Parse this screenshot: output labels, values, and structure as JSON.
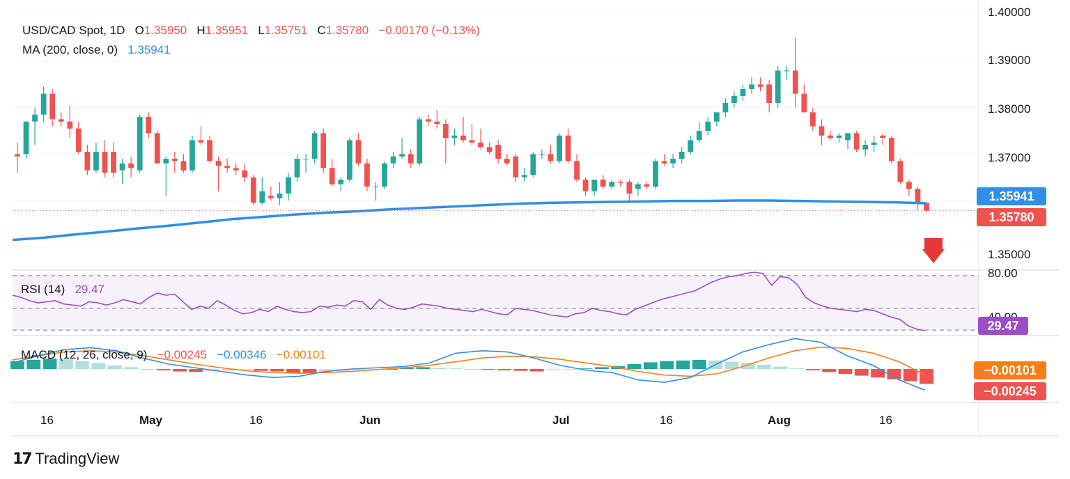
{
  "legend": {
    "symbol": "USD/CAD Spot, 1D",
    "o_label": "O",
    "o_value": "1.35950",
    "h_label": "H",
    "h_value": "1.35951",
    "l_label": "L",
    "l_value": "1.35751",
    "c_label": "C",
    "c_value": "1.35780",
    "change": "−0.00170 (−0.13%)",
    "ma_label": "MA (200, close, 0)",
    "ma_value": "1.35941",
    "rsi_label": "RSI (14)",
    "rsi_value": "29.47",
    "macd_label": "MACD (12, 26, close, 9)",
    "macd_hist": "−0.00245",
    "macd_line": "−0.00346",
    "macd_signal": "−0.00101"
  },
  "price_axis": [
    "1.40000",
    "1.39000",
    "1.38000",
    "1.37000",
    "1.35000"
  ],
  "rsi_axis": [
    "80.00",
    "40.00"
  ],
  "badges": {
    "ma": "1.35941",
    "close": "1.35780",
    "rsi": "29.47",
    "macd_signal": "−0.00101",
    "macd_hist": "−0.00245"
  },
  "x_axis": [
    "16",
    "May",
    "16",
    "Jun",
    "Jul",
    "16",
    "Aug",
    "16"
  ],
  "brand": "TradingView",
  "colors": {
    "up": "#26a69a",
    "down": "#ef5350",
    "ma": "#2f8fe6",
    "rsi": "#9c4fc4",
    "macd": "#2f8fe6",
    "signal": "#f57f17",
    "arrow": "#e53935"
  },
  "chart_data": {
    "type": "candlestick",
    "title": "USD/CAD Spot, 1D",
    "ylim": [
      1.345,
      1.4005
    ],
    "candles": [
      {
        "o": 1.37,
        "h": 1.3725,
        "l": 1.366,
        "c": 1.3695
      },
      {
        "o": 1.37,
        "h": 1.377,
        "l": 1.369,
        "c": 1.377
      },
      {
        "o": 1.377,
        "h": 1.38,
        "l": 1.372,
        "c": 1.3785
      },
      {
        "o": 1.3785,
        "h": 1.3845,
        "l": 1.377,
        "c": 1.383
      },
      {
        "o": 1.383,
        "h": 1.384,
        "l": 1.376,
        "c": 1.3775
      },
      {
        "o": 1.3775,
        "h": 1.379,
        "l": 1.376,
        "c": 1.377
      },
      {
        "o": 1.377,
        "h": 1.3805,
        "l": 1.3735,
        "c": 1.3755
      },
      {
        "o": 1.3755,
        "h": 1.377,
        "l": 1.37,
        "c": 1.3705
      },
      {
        "o": 1.3705,
        "h": 1.372,
        "l": 1.3655,
        "c": 1.3665
      },
      {
        "o": 1.3665,
        "h": 1.3725,
        "l": 1.366,
        "c": 1.3705
      },
      {
        "o": 1.3705,
        "h": 1.373,
        "l": 1.365,
        "c": 1.366
      },
      {
        "o": 1.3705,
        "h": 1.3725,
        "l": 1.365,
        "c": 1.366
      },
      {
        "o": 1.3665,
        "h": 1.369,
        "l": 1.3635,
        "c": 1.368
      },
      {
        "o": 1.368,
        "h": 1.3695,
        "l": 1.365,
        "c": 1.367
      },
      {
        "o": 1.3665,
        "h": 1.3785,
        "l": 1.366,
        "c": 1.378
      },
      {
        "o": 1.378,
        "h": 1.379,
        "l": 1.3735,
        "c": 1.3745
      },
      {
        "o": 1.3745,
        "h": 1.375,
        "l": 1.368,
        "c": 1.368
      },
      {
        "o": 1.368,
        "h": 1.3695,
        "l": 1.361,
        "c": 1.369
      },
      {
        "o": 1.369,
        "h": 1.3705,
        "l": 1.366,
        "c": 1.3685
      },
      {
        "o": 1.3685,
        "h": 1.37,
        "l": 1.366,
        "c": 1.3665
      },
      {
        "o": 1.3665,
        "h": 1.374,
        "l": 1.366,
        "c": 1.373
      },
      {
        "o": 1.373,
        "h": 1.376,
        "l": 1.372,
        "c": 1.3725
      },
      {
        "o": 1.373,
        "h": 1.374,
        "l": 1.368,
        "c": 1.3685
      },
      {
        "o": 1.3685,
        "h": 1.3695,
        "l": 1.362,
        "c": 1.3675
      },
      {
        "o": 1.3675,
        "h": 1.369,
        "l": 1.366,
        "c": 1.367
      },
      {
        "o": 1.367,
        "h": 1.368,
        "l": 1.3655,
        "c": 1.3665
      },
      {
        "o": 1.3665,
        "h": 1.368,
        "l": 1.364,
        "c": 1.365
      },
      {
        "o": 1.365,
        "h": 1.3655,
        "l": 1.359,
        "c": 1.3595
      },
      {
        "o": 1.3595,
        "h": 1.365,
        "l": 1.359,
        "c": 1.362
      },
      {
        "o": 1.361,
        "h": 1.363,
        "l": 1.36,
        "c": 1.3605
      },
      {
        "o": 1.3605,
        "h": 1.364,
        "l": 1.359,
        "c": 1.3615
      },
      {
        "o": 1.3615,
        "h": 1.366,
        "l": 1.36,
        "c": 1.365
      },
      {
        "o": 1.365,
        "h": 1.37,
        "l": 1.364,
        "c": 1.369
      },
      {
        "o": 1.369,
        "h": 1.37,
        "l": 1.366,
        "c": 1.369
      },
      {
        "o": 1.369,
        "h": 1.375,
        "l": 1.368,
        "c": 1.3745
      },
      {
        "o": 1.3745,
        "h": 1.3755,
        "l": 1.366,
        "c": 1.367
      },
      {
        "o": 1.367,
        "h": 1.369,
        "l": 1.363,
        "c": 1.3635
      },
      {
        "o": 1.3635,
        "h": 1.365,
        "l": 1.362,
        "c": 1.3645
      },
      {
        "o": 1.3645,
        "h": 1.3735,
        "l": 1.364,
        "c": 1.373
      },
      {
        "o": 1.373,
        "h": 1.3745,
        "l": 1.3675,
        "c": 1.368
      },
      {
        "o": 1.368,
        "h": 1.369,
        "l": 1.362,
        "c": 1.363
      },
      {
        "o": 1.363,
        "h": 1.364,
        "l": 1.36,
        "c": 1.363
      },
      {
        "o": 1.363,
        "h": 1.3685,
        "l": 1.3625,
        "c": 1.368
      },
      {
        "o": 1.368,
        "h": 1.3705,
        "l": 1.367,
        "c": 1.3695
      },
      {
        "o": 1.3695,
        "h": 1.3735,
        "l": 1.369,
        "c": 1.37
      },
      {
        "o": 1.37,
        "h": 1.371,
        "l": 1.367,
        "c": 1.368
      },
      {
        "o": 1.368,
        "h": 1.378,
        "l": 1.3675,
        "c": 1.3775
      },
      {
        "o": 1.3775,
        "h": 1.3785,
        "l": 1.376,
        "c": 1.377
      },
      {
        "o": 1.377,
        "h": 1.3795,
        "l": 1.3755,
        "c": 1.3765
      },
      {
        "o": 1.3765,
        "h": 1.3775,
        "l": 1.368,
        "c": 1.3735
      },
      {
        "o": 1.3735,
        "h": 1.3755,
        "l": 1.372,
        "c": 1.374
      },
      {
        "o": 1.374,
        "h": 1.378,
        "l": 1.3725,
        "c": 1.373
      },
      {
        "o": 1.373,
        "h": 1.3765,
        "l": 1.372,
        "c": 1.3725
      },
      {
        "o": 1.3725,
        "h": 1.3755,
        "l": 1.371,
        "c": 1.3715
      },
      {
        "o": 1.3715,
        "h": 1.3725,
        "l": 1.37,
        "c": 1.3705
      },
      {
        "o": 1.372,
        "h": 1.373,
        "l": 1.368,
        "c": 1.369
      },
      {
        "o": 1.369,
        "h": 1.37,
        "l": 1.3675,
        "c": 1.368
      },
      {
        "o": 1.3695,
        "h": 1.37,
        "l": 1.364,
        "c": 1.365
      },
      {
        "o": 1.365,
        "h": 1.367,
        "l": 1.364,
        "c": 1.3655
      },
      {
        "o": 1.3655,
        "h": 1.3705,
        "l": 1.365,
        "c": 1.37
      },
      {
        "o": 1.37,
        "h": 1.371,
        "l": 1.369,
        "c": 1.37
      },
      {
        "o": 1.37,
        "h": 1.372,
        "l": 1.368,
        "c": 1.3685
      },
      {
        "o": 1.3685,
        "h": 1.3745,
        "l": 1.368,
        "c": 1.374
      },
      {
        "o": 1.374,
        "h": 1.3755,
        "l": 1.368,
        "c": 1.3685
      },
      {
        "o": 1.3685,
        "h": 1.37,
        "l": 1.364,
        "c": 1.3645
      },
      {
        "o": 1.3645,
        "h": 1.365,
        "l": 1.361,
        "c": 1.362
      },
      {
        "o": 1.362,
        "h": 1.3645,
        "l": 1.361,
        "c": 1.3645
      },
      {
        "o": 1.3645,
        "h": 1.3655,
        "l": 1.3625,
        "c": 1.363
      },
      {
        "o": 1.363,
        "h": 1.3645,
        "l": 1.3625,
        "c": 1.364
      },
      {
        "o": 1.364,
        "h": 1.3645,
        "l": 1.363,
        "c": 1.3638
      },
      {
        "o": 1.364,
        "h": 1.3645,
        "l": 1.36,
        "c": 1.3615
      },
      {
        "o": 1.3625,
        "h": 1.364,
        "l": 1.361,
        "c": 1.3635
      },
      {
        "o": 1.3635,
        "h": 1.364,
        "l": 1.3625,
        "c": 1.363
      },
      {
        "o": 1.363,
        "h": 1.369,
        "l": 1.3625,
        "c": 1.3685
      },
      {
        "o": 1.3685,
        "h": 1.37,
        "l": 1.3675,
        "c": 1.368
      },
      {
        "o": 1.368,
        "h": 1.37,
        "l": 1.367,
        "c": 1.369
      },
      {
        "o": 1.369,
        "h": 1.3715,
        "l": 1.368,
        "c": 1.3705
      },
      {
        "o": 1.3705,
        "h": 1.374,
        "l": 1.37,
        "c": 1.373
      },
      {
        "o": 1.373,
        "h": 1.377,
        "l": 1.3725,
        "c": 1.375
      },
      {
        "o": 1.375,
        "h": 1.378,
        "l": 1.374,
        "c": 1.377
      },
      {
        "o": 1.377,
        "h": 1.379,
        "l": 1.376,
        "c": 1.379
      },
      {
        "o": 1.379,
        "h": 1.382,
        "l": 1.378,
        "c": 1.381
      },
      {
        "o": 1.381,
        "h": 1.3835,
        "l": 1.38,
        "c": 1.3825
      },
      {
        "o": 1.3825,
        "h": 1.385,
        "l": 1.3815,
        "c": 1.384
      },
      {
        "o": 1.384,
        "h": 1.3865,
        "l": 1.383,
        "c": 1.385
      },
      {
        "o": 1.385,
        "h": 1.3865,
        "l": 1.3835,
        "c": 1.3845
      },
      {
        "o": 1.385,
        "h": 1.386,
        "l": 1.379,
        "c": 1.381
      },
      {
        "o": 1.381,
        "h": 1.389,
        "l": 1.38,
        "c": 1.388
      },
      {
        "o": 1.388,
        "h": 1.389,
        "l": 1.386,
        "c": 1.388
      },
      {
        "o": 1.388,
        "h": 1.395,
        "l": 1.38,
        "c": 1.383
      },
      {
        "o": 1.383,
        "h": 1.385,
        "l": 1.379,
        "c": 1.379
      },
      {
        "o": 1.379,
        "h": 1.38,
        "l": 1.375,
        "c": 1.376
      },
      {
        "o": 1.376,
        "h": 1.3775,
        "l": 1.372,
        "c": 1.374
      },
      {
        "o": 1.374,
        "h": 1.375,
        "l": 1.373,
        "c": 1.3735
      },
      {
        "o": 1.3735,
        "h": 1.3745,
        "l": 1.3725,
        "c": 1.374
      },
      {
        "o": 1.373,
        "h": 1.3745,
        "l": 1.371,
        "c": 1.3745
      },
      {
        "o": 1.3745,
        "h": 1.375,
        "l": 1.3705,
        "c": 1.371
      },
      {
        "o": 1.371,
        "h": 1.373,
        "l": 1.3695,
        "c": 1.372
      },
      {
        "o": 1.372,
        "h": 1.374,
        "l": 1.3705,
        "c": 1.3725
      },
      {
        "o": 1.374,
        "h": 1.3745,
        "l": 1.372,
        "c": 1.3735
      },
      {
        "o": 1.3735,
        "h": 1.374,
        "l": 1.368,
        "c": 1.3685
      },
      {
        "o": 1.3685,
        "h": 1.369,
        "l": 1.3635,
        "c": 1.364
      },
      {
        "o": 1.364,
        "h": 1.3645,
        "l": 1.361,
        "c": 1.3625
      },
      {
        "o": 1.3625,
        "h": 1.363,
        "l": 1.358,
        "c": 1.3595
      },
      {
        "o": 1.3595,
        "h": 1.3595,
        "l": 1.3575,
        "c": 1.3578
      }
    ],
    "ma200": [
      1.3515,
      1.352,
      1.3527,
      1.3533,
      1.354,
      1.3546,
      1.3553,
      1.356,
      1.3565,
      1.357,
      1.3574,
      1.3577,
      1.3581,
      1.3584,
      1.3587,
      1.359,
      1.3593,
      1.3595,
      1.3596,
      1.3597,
      1.3598,
      1.3599,
      1.3599,
      1.36,
      1.36,
      1.3599,
      1.3598,
      1.3597,
      1.3596,
      1.3594
    ],
    "rsi": [
      62,
      60,
      57,
      55,
      56,
      57,
      54,
      53,
      52,
      56,
      55,
      53,
      55,
      58,
      56,
      54,
      60,
      64,
      62,
      63,
      56,
      49,
      52,
      50,
      57,
      53,
      48,
      45,
      46,
      49,
      47,
      52,
      49,
      47,
      46,
      47,
      52,
      51,
      53,
      52,
      57,
      56,
      49,
      58,
      53,
      50,
      49,
      51,
      54,
      53,
      52,
      50,
      49,
      48,
      47,
      49,
      47,
      45,
      44,
      50,
      49,
      48,
      46,
      44,
      43,
      42,
      45,
      46,
      50,
      48,
      47,
      45,
      44,
      49,
      52,
      55,
      58,
      60,
      62,
      64,
      66,
      70,
      74,
      77,
      79,
      80,
      82,
      83,
      82,
      71,
      79,
      78,
      72,
      60,
      55,
      52,
      50,
      49,
      48,
      47,
      49,
      48,
      45,
      42,
      40,
      34,
      31,
      29.47
    ],
    "macd_hist": [
      0.0013,
      0.0015,
      0.0017,
      0.0016,
      0.0013,
      0.001,
      0.0006,
      0.0003,
      0.0,
      -0.0002,
      -0.0004,
      -0.0005,
      -0.0004,
      -0.0003,
      -0.0002,
      -0.0003,
      -0.0004,
      -0.0006,
      -0.0007,
      -0.0006,
      -0.0004,
      -0.0002,
      -0.0001,
      0.0,
      0.0002,
      0.0003,
      0.0002,
      0.0001,
      0.0,
      -0.0001,
      -0.0002,
      -0.0003,
      -0.0004,
      -0.0002,
      -0.0001,
      0.0001,
      0.0003,
      0.0005,
      0.0008,
      0.0011,
      0.0013,
      0.0014,
      0.0015,
      0.0014,
      0.0012,
      0.001,
      0.0007,
      0.0004,
      0.0001,
      -0.0002,
      -0.0005,
      -0.0008,
      -0.0011,
      -0.0014,
      -0.0017,
      -0.002,
      -0.00245
    ],
    "macd_line": [
      0.001,
      0.0022,
      0.0032,
      0.0035,
      0.003,
      0.0018,
      0.0008,
      0.0002,
      -0.0004,
      -0.001,
      -0.0014,
      -0.0012,
      -0.0004,
      0.0,
      0.0002,
      0.0004,
      0.001,
      0.0026,
      0.003,
      0.0028,
      0.0018,
      0.0006,
      -0.0002,
      -0.0006,
      -0.0018,
      -0.0022,
      -0.0014,
      0.0008,
      0.0028,
      0.004,
      0.005,
      0.0044,
      0.0022,
      0.0006,
      -0.0018,
      -0.0035
    ],
    "macd_signal": [
      0.0015,
      0.0022,
      0.0028,
      0.003,
      0.0028,
      0.0022,
      0.0015,
      0.0008,
      0.0002,
      -0.0003,
      -0.0006,
      -0.0007,
      -0.0006,
      -0.0004,
      -0.0001,
      0.0002,
      0.0006,
      0.0012,
      0.0018,
      0.0021,
      0.002,
      0.0016,
      0.001,
      0.0004,
      -0.0004,
      -0.001,
      -0.0012,
      -0.0008,
      0.0004,
      0.0018,
      0.003,
      0.0036,
      0.0034,
      0.0026,
      0.0012,
      -0.00101
    ]
  }
}
